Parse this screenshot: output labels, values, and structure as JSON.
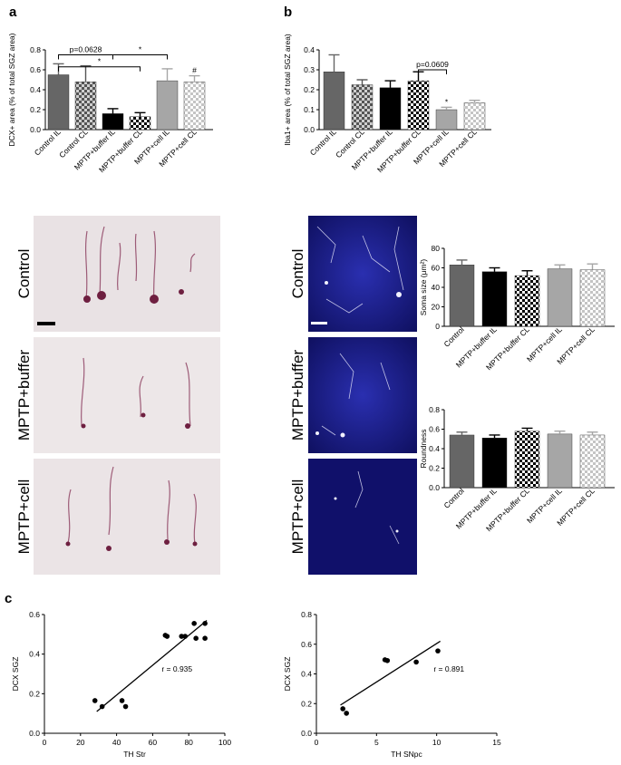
{
  "panels": {
    "a": "a",
    "b": "b",
    "c": "c"
  },
  "colors": {
    "dark_gray": "#666666",
    "black": "#000000",
    "light_gray": "#a6a6a6",
    "checker_dark": "#555555",
    "checker_light": "#cccccc"
  },
  "micrographs": {
    "left_labels": [
      "Control",
      "MPTP+buffer",
      "MPTP+cell"
    ],
    "right_labels": [
      "Control",
      "MPTP+buffer",
      "MPTP+cell"
    ]
  },
  "chart_data": [
    {
      "id": "a",
      "type": "bar",
      "ylabel": "DCX+ area (% of total SGZ area)",
      "ylim": [
        0,
        0.8
      ],
      "yticks": [
        "0.0",
        "0.2",
        "0.4",
        "0.6",
        "0.8"
      ],
      "categories": [
        "Control IL",
        "Control CL",
        "MPTP+buffer IL",
        "MPTP+buffer CL",
        "MPTP+cell IL",
        "MPTP+cell CL"
      ],
      "values": [
        0.55,
        0.48,
        0.16,
        0.13,
        0.49,
        0.48
      ],
      "errors": [
        0.11,
        0.16,
        0.05,
        0.04,
        0.12,
        0.06
      ],
      "fills": [
        "dark",
        "check_dark",
        "black",
        "check_black",
        "light",
        "check_light"
      ],
      "annotations": [
        {
          "text": "p=0.0628",
          "from": 0,
          "to": 2,
          "level": 0.75
        },
        {
          "text": "*",
          "from": 2,
          "to": 4,
          "level": 0.75
        },
        {
          "text": "*",
          "from": 0,
          "to": 3,
          "level": 0.63
        }
      ],
      "bar_markers": [
        {
          "bar": 5,
          "text": "#"
        }
      ]
    },
    {
      "id": "b",
      "type": "bar",
      "ylabel": "Iba1+ area (% of total SGZ area)",
      "ylim": [
        0,
        0.4
      ],
      "yticks": [
        "0.0",
        "0.1",
        "0.2",
        "0.3",
        "0.4"
      ],
      "categories": [
        "Control IL",
        "Control CL",
        "MPTP+buffer IL",
        "MPTP+buffer CL",
        "MPTP+cell IL",
        "MPTP+cell CL"
      ],
      "values": [
        0.29,
        0.225,
        0.21,
        0.245,
        0.1,
        0.135
      ],
      "errors": [
        0.085,
        0.025,
        0.035,
        0.045,
        0.012,
        0.012
      ],
      "fills": [
        "dark",
        "check_dark",
        "black",
        "check_black",
        "light",
        "check_light"
      ],
      "annotations": [
        {
          "text": "p=0.0609",
          "from": 3,
          "to": 4,
          "level": 0.3
        }
      ],
      "bar_markers": [
        {
          "bar": 4,
          "text": "*"
        }
      ]
    },
    {
      "id": "soma",
      "type": "bar",
      "ylabel": "Soma size (μm²)",
      "ylim": [
        0,
        80
      ],
      "yticks": [
        "0",
        "20",
        "40",
        "60",
        "80"
      ],
      "categories": [
        "Control",
        "MPTP+buffer IL",
        "MPTP+buffer CL",
        "MPTP+cell IL",
        "MPTP+cell CL"
      ],
      "values": [
        63,
        56,
        52,
        59,
        58
      ],
      "errors": [
        5,
        4,
        5,
        4,
        6
      ],
      "fills": [
        "dark",
        "black",
        "check_black",
        "light",
        "check_light"
      ],
      "annotations": [],
      "bar_markers": []
    },
    {
      "id": "round",
      "type": "bar",
      "ylabel": "Roundness",
      "ylim": [
        0,
        0.8
      ],
      "yticks": [
        "0.0",
        "0.2",
        "0.4",
        "0.6",
        "0.8"
      ],
      "categories": [
        "Control",
        "MPTP+buffer IL",
        "MPTP+buffer CL",
        "MPTP+cell IL",
        "MPTP+cell CL"
      ],
      "values": [
        0.54,
        0.51,
        0.58,
        0.55,
        0.54
      ],
      "errors": [
        0.03,
        0.03,
        0.03,
        0.03,
        0.03
      ],
      "fills": [
        "dark",
        "black",
        "check_black",
        "light",
        "check_light"
      ],
      "annotations": [],
      "bar_markers": []
    },
    {
      "id": "c1",
      "type": "scatter",
      "xlabel": "TH Str",
      "ylabel": "DCX SGZ",
      "xlim": [
        0,
        100
      ],
      "ylim": [
        0,
        0.6
      ],
      "xticks": [
        "0",
        "20",
        "40",
        "60",
        "80",
        "100"
      ],
      "yticks": [
        "0.0",
        "0.2",
        "0.4",
        "0.6"
      ],
      "x": [
        28,
        32,
        43,
        45,
        67,
        68,
        76,
        78,
        83,
        84,
        89,
        89
      ],
      "y": [
        0.165,
        0.135,
        0.165,
        0.135,
        0.495,
        0.49,
        0.49,
        0.49,
        0.555,
        0.48,
        0.555,
        0.48
      ],
      "fit": {
        "x": [
          29,
          90
        ],
        "y": [
          0.11,
          0.57
        ]
      },
      "annotation": "r = 0.935"
    },
    {
      "id": "c2",
      "type": "scatter",
      "xlabel": "TH SNpc",
      "ylabel": "DCX SGZ",
      "xlim": [
        0,
        15
      ],
      "ylim": [
        0,
        0.8
      ],
      "xticks": [
        "0",
        "5",
        "10",
        "15"
      ],
      "yticks": [
        "0.0",
        "0.2",
        "0.4",
        "0.6",
        "0.8"
      ],
      "x": [
        2.2,
        2.5,
        5.7,
        5.9,
        8.3,
        10.1
      ],
      "y": [
        0.165,
        0.135,
        0.495,
        0.49,
        0.48,
        0.555
      ],
      "fit": {
        "x": [
          2.0,
          10.3
        ],
        "y": [
          0.19,
          0.62
        ]
      },
      "annotation": "r = 0.891"
    }
  ]
}
